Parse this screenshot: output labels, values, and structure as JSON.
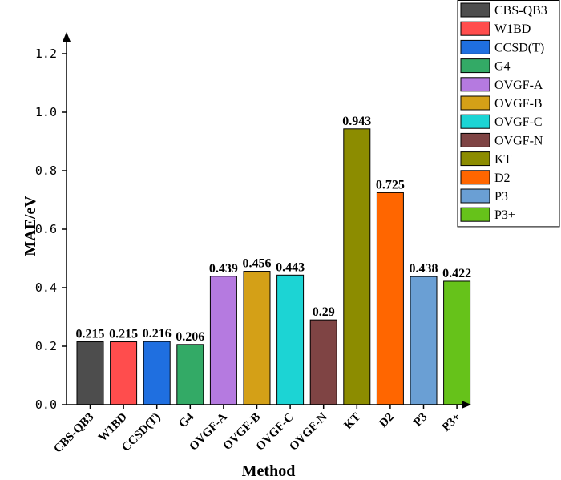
{
  "chart_data": {
    "type": "bar",
    "title": "",
    "xlabel": "Method",
    "ylabel": "MAE/eV",
    "ylim": [
      0,
      1.2
    ],
    "yticks": [
      "0.0",
      "0.2",
      "0.4",
      "0.6",
      "0.8",
      "1.0",
      "1.2"
    ],
    "categories": [
      "CBS-QB3",
      "W1BD",
      "CCSD(T)",
      "G4",
      "OVGF-A",
      "OVGF-B",
      "OVGF-C",
      "OVGF-N",
      "KT",
      "D2",
      "P3",
      "P3+"
    ],
    "values": [
      0.215,
      0.215,
      0.216,
      0.206,
      0.439,
      0.456,
      0.443,
      0.29,
      0.943,
      0.725,
      0.438,
      0.422
    ],
    "data_labels": [
      "0.215",
      "0.215",
      "0.216",
      "0.206",
      "0.439",
      "0.456",
      "0.443",
      "0.29",
      "0.943",
      "0.725",
      "0.438",
      "0.422"
    ],
    "colors": [
      "#4d4d4d",
      "#ff4d4d",
      "#1f6fe0",
      "#33aa66",
      "#b57ae0",
      "#d4a017",
      "#1cd4d4",
      "#7f4444",
      "#8c8c00",
      "#ff6600",
      "#6a9fd4",
      "#66c21a"
    ],
    "legend": {
      "position": "top-right",
      "entries": [
        "CBS-QB3",
        "W1BD",
        "CCSD(T)",
        "G4",
        "OVGF-A",
        "OVGF-B",
        "OVGF-C",
        "OVGF-N",
        "KT",
        "D2",
        "P3",
        "P3+"
      ]
    }
  }
}
